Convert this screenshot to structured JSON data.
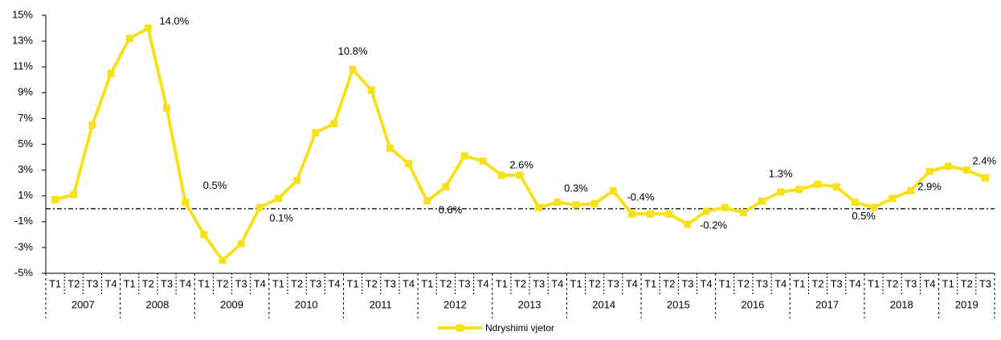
{
  "chart_data": {
    "type": "line",
    "categories": [
      "T1",
      "T2",
      "T3",
      "T4",
      "T1",
      "T2",
      "T3",
      "T4",
      "T1",
      "T2",
      "T3",
      "T4",
      "T1",
      "T2",
      "T3",
      "T4",
      "T1",
      "T2",
      "T3",
      "T4",
      "T1",
      "T2",
      "T3",
      "T4",
      "T1",
      "T2",
      "T3",
      "T4",
      "T1",
      "T2",
      "T3",
      "T4",
      "T1",
      "T2",
      "T3",
      "T4",
      "T1",
      "T2",
      "T3",
      "T4",
      "T1",
      "T2",
      "T3",
      "T4",
      "T1",
      "T2",
      "T3",
      "T4",
      "T1",
      "T2",
      "T3"
    ],
    "years": [
      "2007",
      "2008",
      "2009",
      "2010",
      "2011",
      "2012",
      "2013",
      "2014",
      "2015",
      "2016",
      "2017",
      "2018",
      "2019"
    ],
    "series": [
      {
        "name": "Ndryshimi vjetor",
        "color": "#f7e01c",
        "values": [
          0.7,
          1.1,
          6.5,
          10.5,
          13.2,
          14.0,
          7.8,
          0.5,
          -2.0,
          -4.0,
          -2.7,
          0.1,
          0.8,
          2.2,
          5.9,
          6.6,
          10.8,
          9.2,
          4.7,
          3.5,
          0.6,
          1.7,
          4.1,
          3.7,
          2.6,
          2.6,
          0.1,
          0.5,
          0.3,
          0.4,
          1.4,
          -0.4,
          -0.4,
          -0.4,
          -1.2,
          -0.2,
          0.1,
          -0.3,
          0.6,
          1.3,
          1.5,
          1.9,
          1.7,
          0.5,
          0.1,
          0.8,
          1.4,
          2.9,
          3.3,
          3.0,
          2.4
        ],
        "value_labels": [
          null,
          null,
          null,
          null,
          null,
          "14.0%",
          null,
          "0.5%",
          null,
          null,
          null,
          "0.1%",
          null,
          null,
          null,
          null,
          "10.8%",
          null,
          null,
          null,
          "0.6%",
          null,
          null,
          null,
          "2.6%",
          null,
          null,
          null,
          "0.3%",
          null,
          null,
          "-0.4%",
          null,
          null,
          null,
          "-0.2%",
          null,
          null,
          null,
          "1.3%",
          null,
          null,
          null,
          "0.5%",
          null,
          null,
          null,
          "2.9%",
          null,
          null,
          "2.4%"
        ]
      }
    ],
    "ylim": [
      -5,
      15
    ],
    "yticks": [
      {
        "value": -5,
        "label": "-5%"
      },
      {
        "value": -3,
        "label": "-3%"
      },
      {
        "value": -1,
        "label": "-1%"
      },
      {
        "value": 1,
        "label": "1%"
      },
      {
        "value": 3,
        "label": "3%"
      },
      {
        "value": 5,
        "label": "5%"
      },
      {
        "value": 7,
        "label": "7%"
      },
      {
        "value": 9,
        "label": "9%"
      },
      {
        "value": 11,
        "label": "11%"
      },
      {
        "value": 13,
        "label": "13%"
      },
      {
        "value": 15,
        "label": "15%"
      }
    ],
    "legend": "bottom"
  }
}
